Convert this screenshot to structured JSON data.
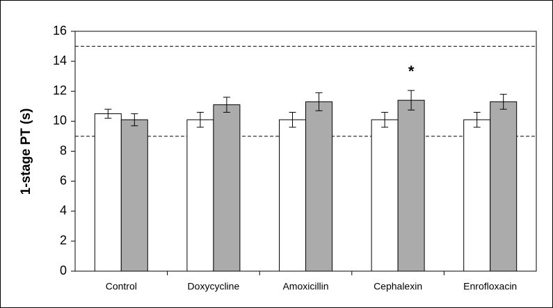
{
  "chart_data": {
    "type": "bar",
    "categories": [
      "Control",
      "Doxycycline",
      "Amoxicillin",
      "Cephalexin",
      "Enrofloxacin"
    ],
    "series": [
      {
        "color": "#ffffff",
        "values": [
          10.5,
          10.1,
          10.1,
          10.1,
          10.1
        ],
        "errors": [
          0.3,
          0.5,
          0.5,
          0.5,
          0.5
        ]
      },
      {
        "color": "#ababab",
        "values": [
          10.1,
          11.1,
          11.3,
          11.4,
          11.3
        ],
        "errors": [
          0.4,
          0.5,
          0.6,
          0.65,
          0.5
        ]
      }
    ],
    "ylabel": "1-stage PT (s)",
    "ylim": [
      0,
      16
    ],
    "yticks": [
      0,
      2,
      4,
      6,
      8,
      10,
      12,
      14,
      16
    ],
    "reference_lines": [
      15,
      9
    ],
    "annotation": "*"
  }
}
